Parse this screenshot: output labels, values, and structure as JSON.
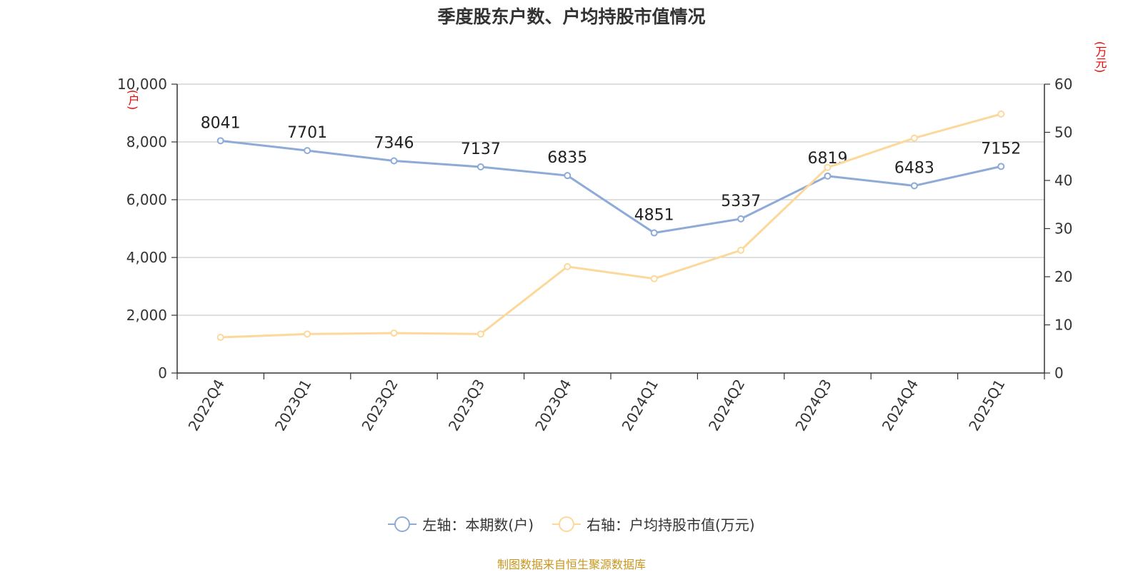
{
  "title": "季度股东户数、户均持股市值情况",
  "source": "制图数据来自恒生聚源数据库",
  "chart_data": {
    "type": "line",
    "title": "季度股东户数、户均持股市值情况",
    "categories": [
      "2022Q4",
      "2023Q1",
      "2023Q2",
      "2023Q3",
      "2023Q4",
      "2024Q1",
      "2024Q2",
      "2024Q3",
      "2024Q4",
      "2025Q1"
    ],
    "left_axis": {
      "unit": "(户)",
      "range": [
        0,
        10000
      ],
      "ticks": [
        "0",
        "2,000",
        "4,000",
        "6,000",
        "8,000",
        "10,000"
      ]
    },
    "right_axis": {
      "unit": "(万元)",
      "range": [
        0,
        60
      ],
      "ticks": [
        "0",
        "10",
        "20",
        "30",
        "40",
        "50",
        "60"
      ]
    },
    "grid": true,
    "legend_position": "bottom",
    "series": [
      {
        "name": "左轴：本期数(户)",
        "axis": "left",
        "color": "#8eabd8",
        "values": [
          8041,
          7701,
          7346,
          7137,
          6835,
          4851,
          5337,
          6819,
          6483,
          7152
        ],
        "labels": [
          "8041",
          "7701",
          "7346",
          "7137",
          "6835",
          "4851",
          "5337",
          "6819",
          "6483",
          "7152"
        ]
      },
      {
        "name": "右轴：户均持股市值(万元)",
        "axis": "right",
        "color": "#fcd89b",
        "values": [
          7.4,
          8.1,
          8.3,
          8.1,
          22.1,
          19.6,
          25.5,
          42.7,
          48.8,
          53.8
        ]
      }
    ]
  }
}
